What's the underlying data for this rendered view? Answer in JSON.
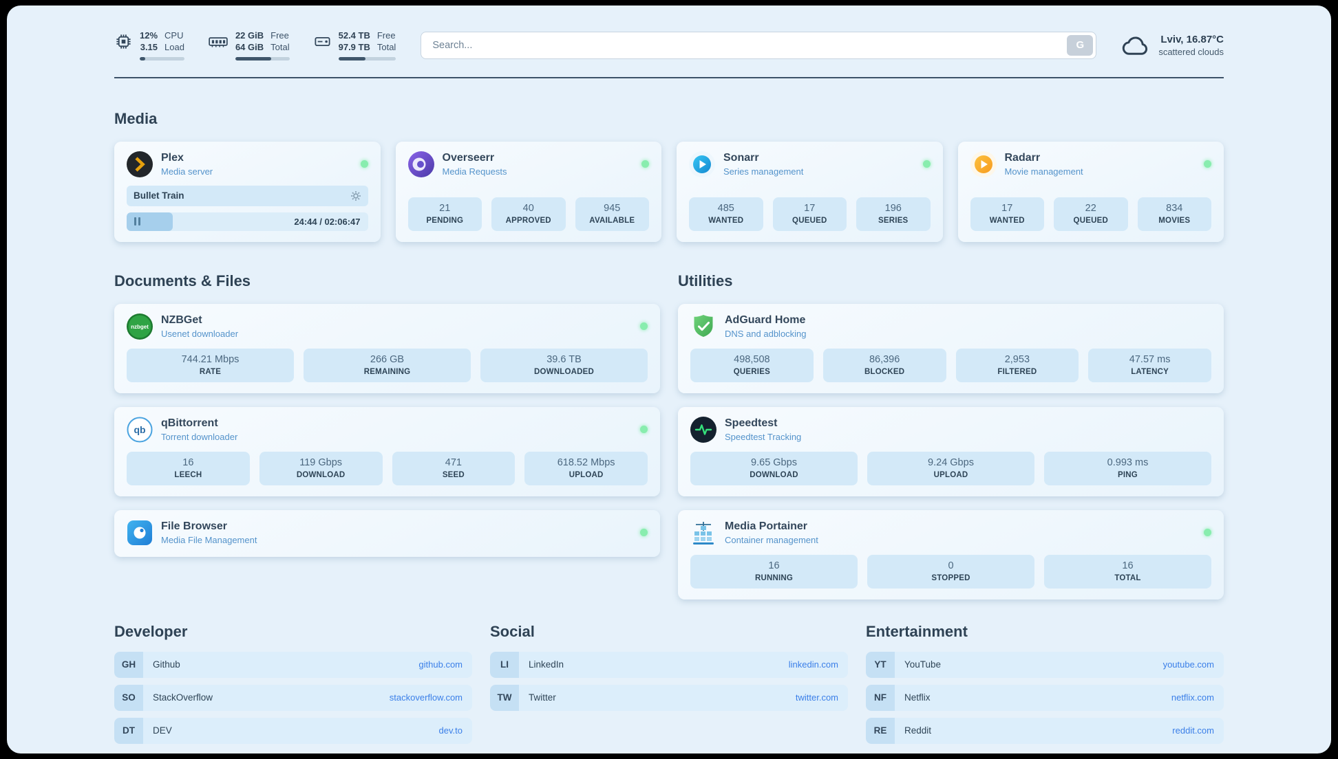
{
  "topbar": {
    "cpu": {
      "line1": "12%",
      "line2": "3.15",
      "label1": "CPU",
      "label2": "Load",
      "percent": 12
    },
    "mem": {
      "line1": "22 GiB",
      "line2": "64 GiB",
      "label1": "Free",
      "label2": "Total",
      "percent": 66
    },
    "disk": {
      "line1": "52.4 TB",
      "line2": "97.9 TB",
      "label1": "Free",
      "label2": "Total",
      "percent": 47
    },
    "search": {
      "placeholder": "Search...",
      "button_label": "G"
    },
    "weather": {
      "location": "Lviv, 16.87°C",
      "condition": "scattered clouds"
    }
  },
  "media": {
    "heading": "Media",
    "plex": {
      "title": "Plex",
      "subtitle": "Media server",
      "now_playing": "Bullet Train",
      "time": "24:44 / 02:06:47",
      "progress_percent": 19
    },
    "overseerr": {
      "title": "Overseerr",
      "subtitle": "Media Requests",
      "stats": [
        {
          "value": "21",
          "label": "PENDING"
        },
        {
          "value": "40",
          "label": "APPROVED"
        },
        {
          "value": "945",
          "label": "AVAILABLE"
        }
      ]
    },
    "sonarr": {
      "title": "Sonarr",
      "subtitle": "Series management",
      "stats": [
        {
          "value": "485",
          "label": "WANTED"
        },
        {
          "value": "17",
          "label": "QUEUED"
        },
        {
          "value": "196",
          "label": "SERIES"
        }
      ]
    },
    "radarr": {
      "title": "Radarr",
      "subtitle": "Movie management",
      "stats": [
        {
          "value": "17",
          "label": "WANTED"
        },
        {
          "value": "22",
          "label": "QUEUED"
        },
        {
          "value": "834",
          "label": "MOVIES"
        }
      ]
    }
  },
  "documents": {
    "heading": "Documents & Files",
    "nzbget": {
      "title": "NZBGet",
      "subtitle": "Usenet downloader",
      "icon_text": "nzbget",
      "stats": [
        {
          "value": "744.21 Mbps",
          "label": "RATE"
        },
        {
          "value": "266 GB",
          "label": "REMAINING"
        },
        {
          "value": "39.6 TB",
          "label": "DOWNLOADED"
        }
      ]
    },
    "qbittorrent": {
      "title": "qBittorrent",
      "subtitle": "Torrent downloader",
      "icon_text": "qb",
      "stats": [
        {
          "value": "16",
          "label": "LEECH"
        },
        {
          "value": "119 Gbps",
          "label": "DOWNLOAD"
        },
        {
          "value": "471",
          "label": "SEED"
        },
        {
          "value": "618.52 Mbps",
          "label": "UPLOAD"
        }
      ]
    },
    "filebrowser": {
      "title": "File Browser",
      "subtitle": "Media File Management"
    }
  },
  "utilities": {
    "heading": "Utilities",
    "adguard": {
      "title": "AdGuard Home",
      "subtitle": "DNS and adblocking",
      "stats": [
        {
          "value": "498,508",
          "label": "QUERIES"
        },
        {
          "value": "86,396",
          "label": "BLOCKED"
        },
        {
          "value": "2,953",
          "label": "FILTERED"
        },
        {
          "value": "47.57 ms",
          "label": "LATENCY"
        }
      ]
    },
    "speedtest": {
      "title": "Speedtest",
      "subtitle": "Speedtest Tracking",
      "stats": [
        {
          "value": "9.65 Gbps",
          "label": "DOWNLOAD"
        },
        {
          "value": "9.24 Gbps",
          "label": "UPLOAD"
        },
        {
          "value": "0.993 ms",
          "label": "PING"
        }
      ]
    },
    "portainer": {
      "title": "Media Portainer",
      "subtitle": "Container management",
      "stats": [
        {
          "value": "16",
          "label": "RUNNING"
        },
        {
          "value": "0",
          "label": "STOPPED"
        },
        {
          "value": "16",
          "label": "TOTAL"
        }
      ]
    }
  },
  "bookmarks": {
    "developer": {
      "heading": "Developer",
      "items": [
        {
          "abbr": "GH",
          "name": "Github",
          "url": "github.com"
        },
        {
          "abbr": "SO",
          "name": "StackOverflow",
          "url": "stackoverflow.com"
        },
        {
          "abbr": "DT",
          "name": "DEV",
          "url": "dev.to"
        }
      ]
    },
    "social": {
      "heading": "Social",
      "items": [
        {
          "abbr": "LI",
          "name": "LinkedIn",
          "url": "linkedin.com"
        },
        {
          "abbr": "TW",
          "name": "Twitter",
          "url": "twitter.com"
        }
      ]
    },
    "entertainment": {
      "heading": "Entertainment",
      "items": [
        {
          "abbr": "YT",
          "name": "YouTube",
          "url": "youtube.com"
        },
        {
          "abbr": "NF",
          "name": "Netflix",
          "url": "netflix.com"
        },
        {
          "abbr": "RE",
          "name": "Reddit",
          "url": "reddit.com"
        }
      ]
    }
  },
  "colors": {
    "accent_link": "#3b7fe8",
    "status_green": "#88edae",
    "bar_fill": "#3f566b",
    "page_bg": "#e6f1fa",
    "stat_bg": "#d3e9f8"
  }
}
